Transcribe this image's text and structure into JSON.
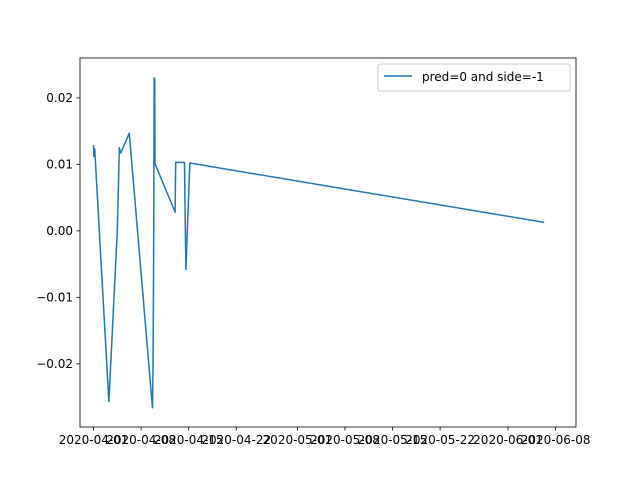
{
  "chart_data": {
    "type": "line",
    "title": "",
    "xlabel": "",
    "ylabel": "",
    "xlim": [
      "2020-03-30",
      "2020-06-11"
    ],
    "ylim": [
      -0.0295,
      0.026
    ],
    "x_ticks": [
      {
        "value": "2020-04-01",
        "label": "2020-04-01"
      },
      {
        "value": "2020-04-08",
        "label": "2020-04-08"
      },
      {
        "value": "2020-04-15",
        "label": "2020-04-15"
      },
      {
        "value": "2020-04-22",
        "label": "2020-04-22"
      },
      {
        "value": "2020-05-01",
        "label": "2020-05-01"
      },
      {
        "value": "2020-05-08",
        "label": "2020-05-08"
      },
      {
        "value": "2020-05-15",
        "label": "2020-05-15"
      },
      {
        "value": "2020-05-22",
        "label": "2020-05-22"
      },
      {
        "value": "2020-06-01",
        "label": "2020-06-01"
      },
      {
        "value": "2020-06-08",
        "label": "2020-06-08"
      }
    ],
    "y_ticks": [
      {
        "value": 0.02,
        "label": "0.02"
      },
      {
        "value": 0.01,
        "label": "0.01"
      },
      {
        "value": 0.0,
        "label": "0.00"
      },
      {
        "value": -0.01,
        "label": "−0.01"
      },
      {
        "value": -0.02,
        "label": "−0.02"
      }
    ],
    "legend": {
      "position": "top-right"
    },
    "series": [
      {
        "name": "pred=0 and side=-1",
        "color": "#1f77b4",
        "points": [
          {
            "x": "2020-04-01T00:00",
            "y": 0.0128
          },
          {
            "x": "2020-04-01T01:00",
            "y": 0.0112
          },
          {
            "x": "2020-04-01T04:00",
            "y": 0.0123
          },
          {
            "x": "2020-04-03T06:00",
            "y": -0.0257
          },
          {
            "x": "2020-04-04T12:00",
            "y": 0.0003
          },
          {
            "x": "2020-04-04T19:00",
            "y": 0.0125
          },
          {
            "x": "2020-04-05T00:00",
            "y": 0.0117
          },
          {
            "x": "2020-04-06T06:00",
            "y": 0.0147
          },
          {
            "x": "2020-04-09T16:00",
            "y": -0.0266
          },
          {
            "x": "2020-04-09T18:00",
            "y": -0.0205
          },
          {
            "x": "2020-04-09T20:00",
            "y": -0.0048
          },
          {
            "x": "2020-04-09T22:00",
            "y": 0.023
          },
          {
            "x": "2020-04-10T00:00",
            "y": 0.0228
          },
          {
            "x": "2020-04-10T01:00",
            "y": 0.0101
          },
          {
            "x": "2020-04-13T00:00",
            "y": 0.0028
          },
          {
            "x": "2020-04-13T02:00",
            "y": 0.0103
          },
          {
            "x": "2020-04-14T09:00",
            "y": 0.0103
          },
          {
            "x": "2020-04-14T14:00",
            "y": -0.0058
          },
          {
            "x": "2020-04-15T04:00",
            "y": 0.0102
          },
          {
            "x": "2020-06-06T05:00",
            "y": 0.0013
          }
        ]
      }
    ]
  }
}
